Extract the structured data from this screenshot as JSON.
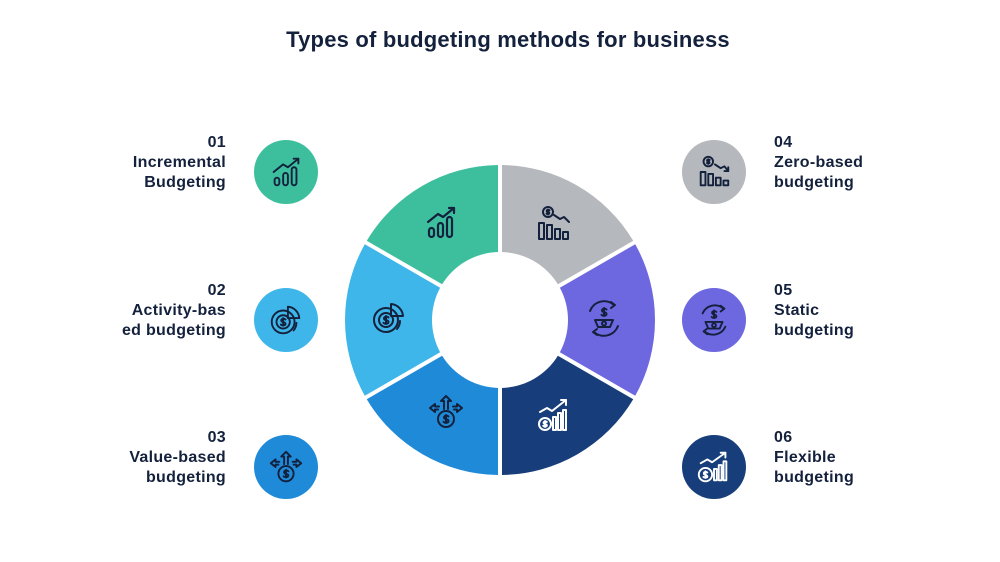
{
  "title": "Types of budgeting methods for business",
  "colors": {
    "text": "#14213d",
    "green": "#3dbf9e",
    "light_blue": "#3fb6ea",
    "blue": "#1f8ad8",
    "gray": "#b5b8bc",
    "purple": "#6d68e0",
    "navy": "#173e7a"
  },
  "items": [
    {
      "number": "01",
      "line1": "Incremental",
      "line2": "Budgeting",
      "icon": "bar-growth-icon",
      "color": "#3dbf9e"
    },
    {
      "number": "02",
      "line1": "Activity-bas",
      "line2": "ed budgeting",
      "icon": "dollar-pie-icon",
      "color": "#3fb6ea"
    },
    {
      "number": "03",
      "line1": "Value-based",
      "line2": "budgeting",
      "icon": "dollar-arrows-icon",
      "color": "#1f8ad8"
    },
    {
      "number": "04",
      "line1": "Zero-based",
      "line2": "budgeting",
      "icon": "dollar-decline-icon",
      "color": "#b5b8bc"
    },
    {
      "number": "05",
      "line1": "Static",
      "line2": "budgeting",
      "icon": "dollar-gear-icon",
      "color": "#6d68e0"
    },
    {
      "number": "06",
      "line1": "Flexible",
      "line2": "budgeting",
      "icon": "coin-growth-icon",
      "color": "#173e7a"
    }
  ]
}
